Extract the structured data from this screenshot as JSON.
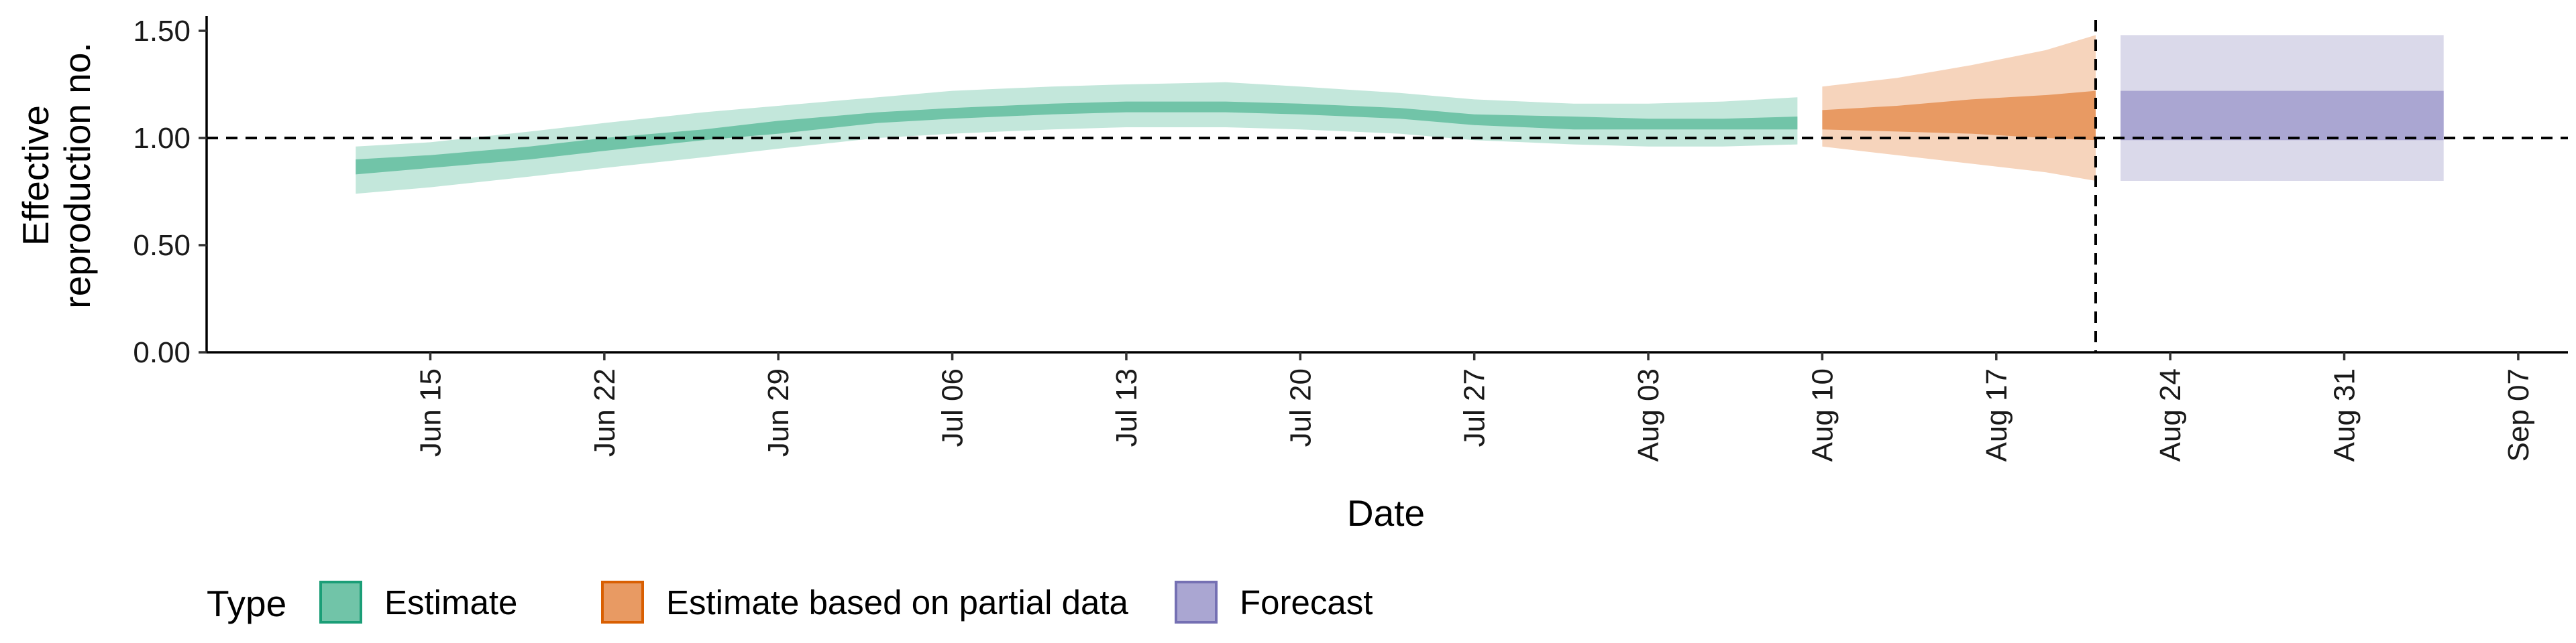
{
  "chart_data": {
    "type": "area",
    "title": "",
    "xlabel": "Date",
    "ylabel_lines": [
      "Effective",
      "reproduction no."
    ],
    "x_ticks": [
      "Jun 15",
      "Jun 22",
      "Jun 29",
      "Jul 06",
      "Jul 13",
      "Jul 20",
      "Jul 27",
      "Aug 03",
      "Aug 10",
      "Aug 17",
      "Aug 24",
      "Aug 31",
      "Sep 07"
    ],
    "y_ticks": [
      "0.00",
      "0.50",
      "1.00",
      "1.50"
    ],
    "ylim": [
      0,
      1.55
    ],
    "xlim": [
      "2020-06-06",
      "2020-09-09"
    ],
    "reference_hline": 1.0,
    "reference_vline": "2020-08-21",
    "legend": {
      "title": "Type",
      "position": "bottom",
      "items": [
        "Estimate",
        "Estimate based on partial data",
        "Forecast"
      ]
    },
    "colors": {
      "Estimate": {
        "outer": "#c3e7db",
        "inner": "#71c4a8",
        "border": "#1b9e77"
      },
      "Estimate based on partial data": {
        "outer": "#f6d4bc",
        "inner": "#e89a63",
        "border": "#d95f02"
      },
      "Forecast": {
        "outer": "#dad9ea",
        "inner": "#aaa6d2",
        "border": "#7570b3"
      }
    },
    "series": [
      {
        "name": "Estimate",
        "points": [
          {
            "date": "2020-06-12",
            "lo90": 0.74,
            "lo50": 0.83,
            "hi50": 0.9,
            "hi90": 0.96
          },
          {
            "date": "2020-06-15",
            "lo90": 0.77,
            "lo50": 0.86,
            "hi50": 0.92,
            "hi90": 0.98
          },
          {
            "date": "2020-06-19",
            "lo90": 0.82,
            "lo50": 0.9,
            "hi50": 0.96,
            "hi90": 1.03
          },
          {
            "date": "2020-06-22",
            "lo90": 0.86,
            "lo50": 0.94,
            "hi50": 1.0,
            "hi90": 1.07
          },
          {
            "date": "2020-06-26",
            "lo90": 0.91,
            "lo50": 0.99,
            "hi50": 1.04,
            "hi90": 1.12
          },
          {
            "date": "2020-06-29",
            "lo90": 0.95,
            "lo50": 1.02,
            "hi50": 1.08,
            "hi90": 1.15
          },
          {
            "date": "2020-07-03",
            "lo90": 1.0,
            "lo50": 1.07,
            "hi50": 1.12,
            "hi90": 1.19
          },
          {
            "date": "2020-07-06",
            "lo90": 1.02,
            "lo50": 1.09,
            "hi50": 1.14,
            "hi90": 1.22
          },
          {
            "date": "2020-07-10",
            "lo90": 1.04,
            "lo50": 1.11,
            "hi50": 1.16,
            "hi90": 1.24
          },
          {
            "date": "2020-07-13",
            "lo90": 1.05,
            "lo50": 1.12,
            "hi50": 1.17,
            "hi90": 1.25
          },
          {
            "date": "2020-07-17",
            "lo90": 1.05,
            "lo50": 1.12,
            "hi50": 1.17,
            "hi90": 1.26
          },
          {
            "date": "2020-07-20",
            "lo90": 1.04,
            "lo50": 1.11,
            "hi50": 1.16,
            "hi90": 1.24
          },
          {
            "date": "2020-07-24",
            "lo90": 1.02,
            "lo50": 1.09,
            "hi50": 1.14,
            "hi90": 1.21
          },
          {
            "date": "2020-07-27",
            "lo90": 0.99,
            "lo50": 1.06,
            "hi50": 1.11,
            "hi90": 1.18
          },
          {
            "date": "2020-07-31",
            "lo90": 0.97,
            "lo50": 1.04,
            "hi50": 1.1,
            "hi90": 1.16
          },
          {
            "date": "2020-08-03",
            "lo90": 0.96,
            "lo50": 1.04,
            "hi50": 1.09,
            "hi90": 1.16
          },
          {
            "date": "2020-08-06",
            "lo90": 0.96,
            "lo50": 1.04,
            "hi50": 1.09,
            "hi90": 1.17
          },
          {
            "date": "2020-08-09",
            "lo90": 0.97,
            "lo50": 1.04,
            "hi50": 1.1,
            "hi90": 1.19
          }
        ]
      },
      {
        "name": "Estimate based on partial data",
        "points": [
          {
            "date": "2020-08-10",
            "lo90": 0.96,
            "lo50": 1.04,
            "hi50": 1.13,
            "hi90": 1.24
          },
          {
            "date": "2020-08-13",
            "lo90": 0.92,
            "lo50": 1.03,
            "hi50": 1.15,
            "hi90": 1.28
          },
          {
            "date": "2020-08-16",
            "lo90": 0.88,
            "lo50": 1.02,
            "hi50": 1.18,
            "hi90": 1.34
          },
          {
            "date": "2020-08-19",
            "lo90": 0.84,
            "lo50": 1.0,
            "hi50": 1.2,
            "hi90": 1.41
          },
          {
            "date": "2020-08-21",
            "lo90": 0.8,
            "lo50": 0.99,
            "hi50": 1.22,
            "hi90": 1.48
          }
        ]
      },
      {
        "name": "Forecast",
        "points": [
          {
            "date": "2020-08-22",
            "lo90": 0.8,
            "lo50": 0.99,
            "hi50": 1.22,
            "hi90": 1.48
          },
          {
            "date": "2020-09-04",
            "lo90": 0.8,
            "lo50": 0.99,
            "hi50": 1.22,
            "hi90": 1.48
          }
        ]
      }
    ]
  }
}
